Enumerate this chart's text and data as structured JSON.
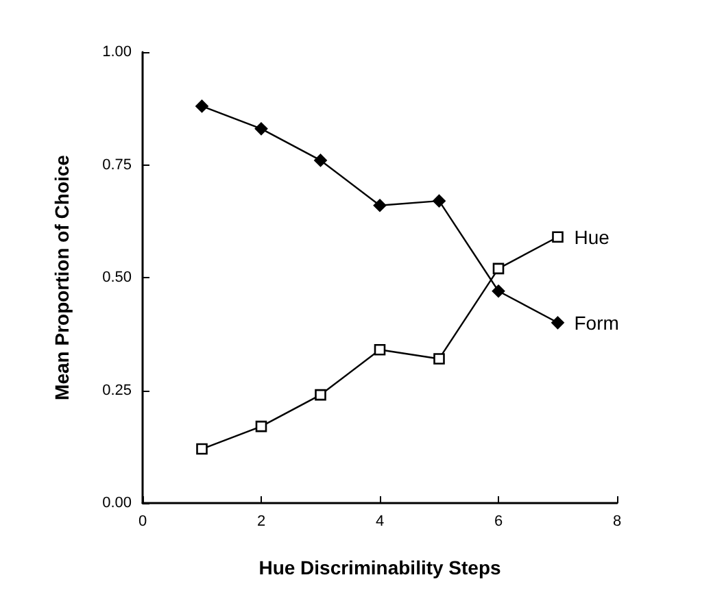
{
  "chart_data": {
    "type": "line",
    "xlabel": "Hue Discriminability Steps",
    "ylabel": "Mean Proportion of Choice",
    "xlim": [
      0,
      8
    ],
    "xticks": [
      0,
      2,
      4,
      6,
      8
    ],
    "ylim": [
      0,
      1
    ],
    "yticks": [
      {
        "value": 0,
        "label": "0.00"
      },
      {
        "value": 0.25,
        "label": "0.25"
      },
      {
        "value": 0.5,
        "label": "0.50"
      },
      {
        "value": 0.75,
        "label": "0.75"
      },
      {
        "value": 1,
        "label": "1.00"
      }
    ],
    "grid": false,
    "legend": false,
    "series": [
      {
        "name": "Hue",
        "color": "#000000",
        "marker": "square",
        "x": [
          1,
          2,
          3,
          4,
          5,
          6,
          7
        ],
        "values": [
          0.12,
          0.17,
          0.24,
          0.34,
          0.32,
          0.52,
          0.59
        ]
      },
      {
        "name": "Form",
        "color": "#000000",
        "marker": "diamond",
        "x": [
          1,
          2,
          3,
          4,
          5,
          6,
          7
        ],
        "values": [
          0.88,
          0.83,
          0.76,
          0.66,
          0.67,
          0.47,
          0.4
        ]
      }
    ]
  }
}
